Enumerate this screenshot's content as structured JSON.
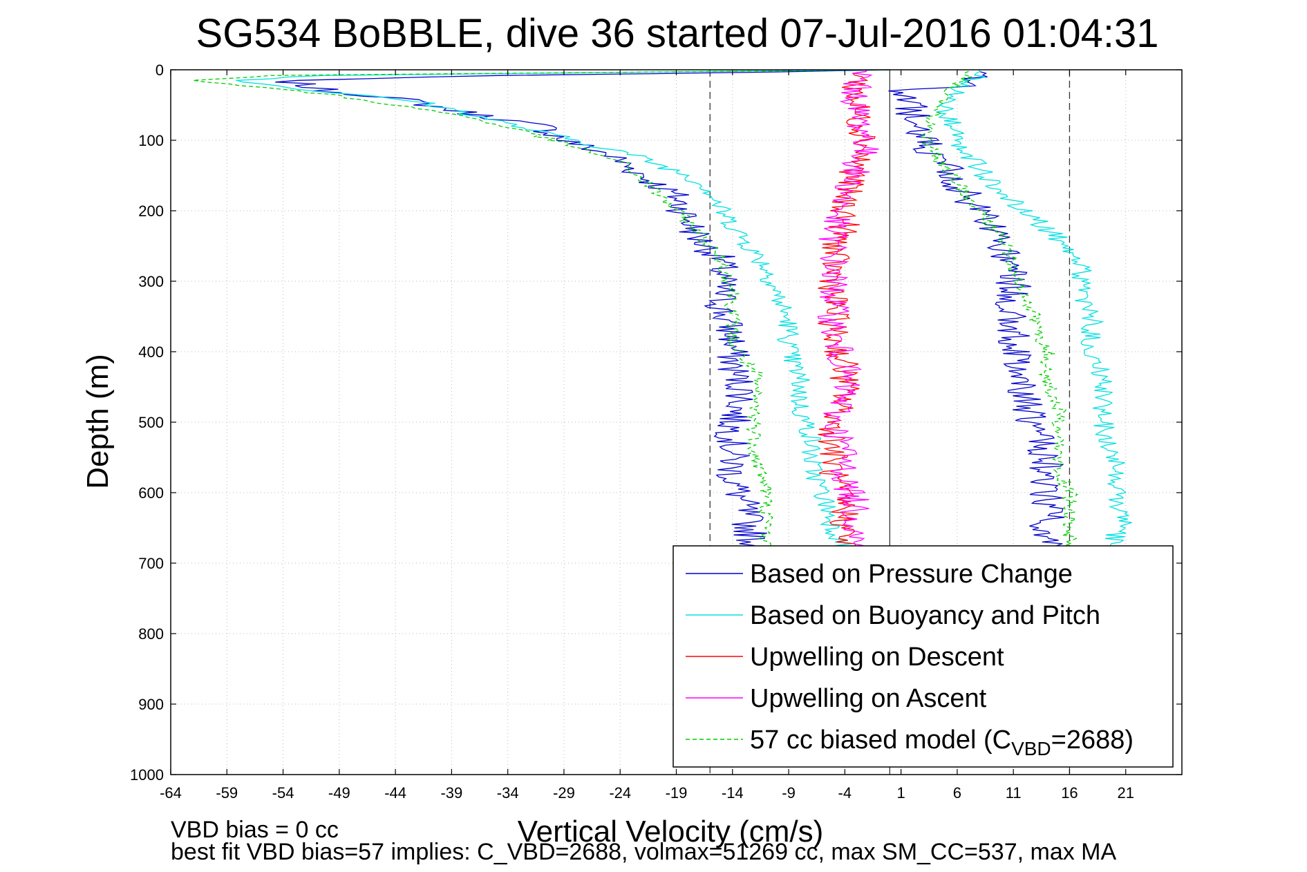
{
  "chart_data": {
    "type": "line",
    "title": "SG534 BoBBLE, dive 36 started 07-Jul-2016 01:04:31",
    "xlabel": "Vertical Velocity (cm/s)",
    "ylabel": "Depth (m)",
    "xlim": [
      -64,
      26
    ],
    "ylim": [
      0,
      1000
    ],
    "y_reversed": true,
    "grid": true,
    "legend_position": "bottom-right",
    "xticks": [
      -64,
      -59,
      -54,
      -49,
      -44,
      -39,
      -34,
      -29,
      -24,
      -19,
      -14,
      -9,
      -4,
      1,
      6,
      11,
      16,
      21
    ],
    "yticks": [
      0,
      100,
      200,
      300,
      400,
      500,
      600,
      700,
      800,
      900,
      1000
    ],
    "reference_lines": [
      {
        "x": -16,
        "style": "dashed"
      },
      {
        "x": 0,
        "style": "solid"
      },
      {
        "x": 16,
        "style": "dashed"
      }
    ],
    "series": [
      {
        "name": "Based on Pressure Change",
        "color": "#0000cc",
        "style": "solid",
        "points": [
          [
            0,
            0
          ],
          [
            -10,
            3
          ],
          [
            -35,
            8
          ],
          [
            -54,
            15
          ],
          [
            -50,
            30
          ],
          [
            -44,
            40
          ],
          [
            -38,
            60
          ],
          [
            -31,
            80
          ],
          [
            -29,
            100
          ],
          [
            -25,
            120
          ],
          [
            -22,
            150
          ],
          [
            -19,
            180
          ],
          [
            -18,
            210
          ],
          [
            -17,
            240
          ],
          [
            -15,
            270
          ],
          [
            -15,
            300
          ],
          [
            -15,
            340
          ],
          [
            -14,
            380
          ],
          [
            -14,
            420
          ],
          [
            -13,
            460
          ],
          [
            -14,
            500
          ],
          [
            -14,
            540
          ],
          [
            -14,
            580
          ],
          [
            -13,
            620
          ],
          [
            -12,
            680
          ],
          [
            14,
            680
          ],
          [
            14,
            640
          ],
          [
            14,
            600
          ],
          [
            14,
            560
          ],
          [
            13,
            520
          ],
          [
            12,
            480
          ],
          [
            12,
            440
          ],
          [
            11,
            400
          ],
          [
            11,
            360
          ],
          [
            11,
            330
          ],
          [
            11,
            300
          ],
          [
            10,
            260
          ],
          [
            9,
            220
          ],
          [
            7,
            180
          ],
          [
            5,
            140
          ],
          [
            3,
            100
          ],
          [
            2,
            80
          ],
          [
            2,
            60
          ],
          [
            2,
            40
          ],
          [
            1,
            30
          ],
          [
            8,
            20
          ],
          [
            8,
            10
          ],
          [
            8,
            5
          ],
          [
            8,
            0
          ]
        ]
      },
      {
        "name": "Based on Buoyancy and Pitch",
        "color": "#00e0e0",
        "style": "solid",
        "points": [
          [
            0,
            0
          ],
          [
            -20,
            3
          ],
          [
            -50,
            8
          ],
          [
            -58,
            15
          ],
          [
            -51,
            30
          ],
          [
            -42,
            45
          ],
          [
            -38,
            60
          ],
          [
            -32,
            85
          ],
          [
            -28,
            100
          ],
          [
            -23,
            120
          ],
          [
            -18,
            150
          ],
          [
            -16,
            170
          ],
          [
            -15,
            200
          ],
          [
            -13,
            240
          ],
          [
            -11,
            280
          ],
          [
            -10,
            320
          ],
          [
            -9,
            360
          ],
          [
            -9,
            400
          ],
          [
            -8,
            440
          ],
          [
            -8,
            480
          ],
          [
            -7,
            520
          ],
          [
            -7,
            560
          ],
          [
            -6,
            600
          ],
          [
            -5,
            650
          ],
          [
            -4,
            680
          ],
          [
            20,
            680
          ],
          [
            20,
            660
          ],
          [
            21,
            640
          ],
          [
            20,
            600
          ],
          [
            20,
            560
          ],
          [
            19,
            520
          ],
          [
            19,
            480
          ],
          [
            19,
            440
          ],
          [
            18,
            400
          ],
          [
            18,
            360
          ],
          [
            17,
            320
          ],
          [
            17,
            280
          ],
          [
            15,
            240
          ],
          [
            12,
            200
          ],
          [
            9,
            160
          ],
          [
            7,
            120
          ],
          [
            6,
            100
          ],
          [
            5,
            60
          ],
          [
            6,
            30
          ],
          [
            7,
            15
          ],
          [
            8,
            5
          ],
          [
            8,
            0
          ]
        ]
      },
      {
        "name": "Upwelling on Descent",
        "color": "#ff0000",
        "style": "solid",
        "points": [
          [
            -2,
            0
          ],
          [
            -3,
            20
          ],
          [
            -3,
            60
          ],
          [
            -2,
            100
          ],
          [
            -3,
            140
          ],
          [
            -4,
            180
          ],
          [
            -4,
            220
          ],
          [
            -5,
            260
          ],
          [
            -5,
            300
          ],
          [
            -5,
            340
          ],
          [
            -5,
            380
          ],
          [
            -4,
            420
          ],
          [
            -4,
            460
          ],
          [
            -5,
            500
          ],
          [
            -5,
            540
          ],
          [
            -5,
            580
          ],
          [
            -4,
            620
          ],
          [
            -4,
            660
          ],
          [
            -4,
            680
          ]
        ]
      },
      {
        "name": "Upwelling on Ascent",
        "color": "#ff00ff",
        "style": "solid",
        "points": [
          [
            -2,
            0
          ],
          [
            -3,
            20
          ],
          [
            -3,
            60
          ],
          [
            -2,
            100
          ],
          [
            -3,
            140
          ],
          [
            -4,
            180
          ],
          [
            -5,
            220
          ],
          [
            -5,
            260
          ],
          [
            -5,
            300
          ],
          [
            -5,
            340
          ],
          [
            -5,
            380
          ],
          [
            -4,
            420
          ],
          [
            -4,
            460
          ],
          [
            -5,
            500
          ],
          [
            -4,
            540
          ],
          [
            -4,
            580
          ],
          [
            -3,
            620
          ],
          [
            -3,
            660
          ],
          [
            -3,
            680
          ]
        ]
      },
      {
        "name": "57 cc biased model (C_VBD=2688)",
        "color": "#00cc00",
        "style": "dashed",
        "points": [
          [
            0,
            0
          ],
          [
            -20,
            3
          ],
          [
            -55,
            8
          ],
          [
            -62,
            15
          ],
          [
            -50,
            35
          ],
          [
            -44,
            50
          ],
          [
            -38,
            65
          ],
          [
            -32,
            90
          ],
          [
            -28,
            110
          ],
          [
            -24,
            130
          ],
          [
            -21,
            170
          ],
          [
            -19,
            200
          ],
          [
            -17,
            230
          ],
          [
            -15,
            270
          ],
          [
            -14,
            310
          ],
          [
            -14,
            350
          ],
          [
            -14,
            390
          ],
          [
            -12,
            430
          ],
          [
            -12,
            470
          ],
          [
            -12,
            510
          ],
          [
            -12,
            550
          ],
          [
            -11,
            590
          ],
          [
            -11,
            640
          ],
          [
            -11,
            680
          ],
          [
            16,
            680
          ],
          [
            16,
            640
          ],
          [
            16,
            600
          ],
          [
            15,
            560
          ],
          [
            15,
            520
          ],
          [
            15,
            480
          ],
          [
            14,
            440
          ],
          [
            14,
            400
          ],
          [
            13,
            360
          ],
          [
            12,
            320
          ],
          [
            11,
            280
          ],
          [
            10,
            240
          ],
          [
            8,
            200
          ],
          [
            6,
            160
          ],
          [
            4,
            120
          ],
          [
            3,
            90
          ],
          [
            4,
            60
          ],
          [
            5,
            30
          ],
          [
            7,
            10
          ],
          [
            7,
            0
          ]
        ]
      }
    ]
  },
  "footer": {
    "bias_line": "VBD bias = 0 cc",
    "fit_line": "best fit VBD bias=57 implies: C_VBD=2688, volmax=51269 cc, max SM_CC=537, max MA"
  },
  "legend": {
    "entries": [
      {
        "label": "Based on Pressure Change"
      },
      {
        "label": "Based on Buoyancy and Pitch"
      },
      {
        "label": "Upwelling on Descent"
      },
      {
        "label": "Upwelling on Ascent"
      },
      {
        "label": "57 cc biased model (C",
        "sub": "VBD",
        "tail": "=2688)"
      }
    ]
  }
}
